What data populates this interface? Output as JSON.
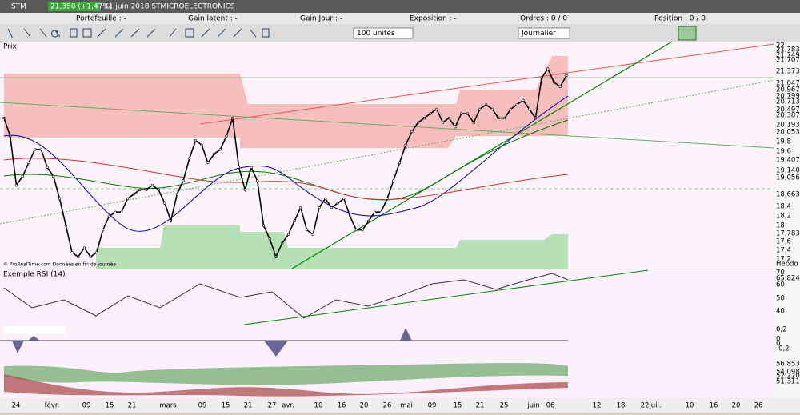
{
  "top_bar": {
    "symbol": "STM",
    "quote": "21,350 (+1,47%)",
    "title": "11 juin 2018 STMICROELECTRONICS"
  },
  "status": {
    "portfolio": "Portefeuille : -",
    "latent": "Gain latent : -",
    "day_gain": "Gain Jour : -",
    "exposure": "Exposition : -",
    "orders": "Ordres : 0 / 0",
    "position": "Position : 0 / 0"
  },
  "toolbar": {
    "quantity": "100 unités",
    "period": "Journalier"
  },
  "price_panel": {
    "title": "Prix",
    "credit": "© ProRealTime.com  Données en fin de journée",
    "tag": "Hebdo",
    "axis": [
      "22",
      "21,783",
      "21,749",
      "21,707",
      "21,373",
      "21,047",
      "20,967",
      "20,799",
      "20,713",
      "20,497",
      "20,387",
      "20,193",
      "20,053",
      "19,8",
      "19,6",
      "19,407",
      "19,140",
      "19,056",
      "18,663",
      "18,4",
      "18,2",
      "18",
      "17,783",
      "17,6",
      "17,4",
      "17,2",
      "Hebdo"
    ],
    "values": [
      20.4,
      20.0,
      18.9,
      19.1,
      19.4,
      19.7,
      19.7,
      19.3,
      19.1,
      18.6,
      18.0,
      17.4,
      17.3,
      17.5,
      17.3,
      17.4,
      17.9,
      18.2,
      18.3,
      18.3,
      18.6,
      18.7,
      18.8,
      18.8,
      18.9,
      18.8,
      18.5,
      18.1,
      18.7,
      19.0,
      19.5,
      19.9,
      19.8,
      19.4,
      19.6,
      19.7,
      20.0,
      20.4,
      19.3,
      18.8,
      19.3,
      19.0,
      18.0,
      17.7,
      17.3,
      17.6,
      17.8,
      18.1,
      18.4,
      17.9,
      17.8,
      18.4,
      18.6,
      18.4,
      18.5,
      18.6,
      18.2,
      17.9,
      17.9,
      18.1,
      18.3,
      18.3,
      18.6,
      19.0,
      19.4,
      19.8,
      20.1,
      20.3,
      20.4,
      20.5,
      20.6,
      20.3,
      20.4,
      20.2,
      20.5,
      20.5,
      20.3,
      20.6,
      20.7,
      20.6,
      20.4,
      20.4,
      20.6,
      20.7,
      20.8,
      20.6,
      20.4,
      21.3,
      21.5,
      21.2,
      21.1,
      21.35
    ]
  },
  "rsi_panel": {
    "title": "Exemple RSI (14)",
    "axis": [
      "70",
      "65,824",
      "60",
      "50",
      "40"
    ]
  },
  "osc_panel": {
    "axis": [
      "0,2",
      "0",
      "0",
      "-0,2"
    ]
  },
  "vol_panel": {
    "axis": [
      "56,853",
      "54,098",
      "52,220",
      "51,311"
    ]
  },
  "dates": [
    "24",
    "févr.",
    "09",
    "15",
    "21",
    "mars",
    "09",
    "15",
    "21",
    "27",
    "avr.",
    "10",
    "16",
    "20",
    "26",
    "mai",
    "09",
    "15",
    "21",
    "25",
    "juin",
    "06",
    "12",
    "18",
    "22",
    "juil.",
    "10",
    "16",
    "20",
    "26"
  ]
}
